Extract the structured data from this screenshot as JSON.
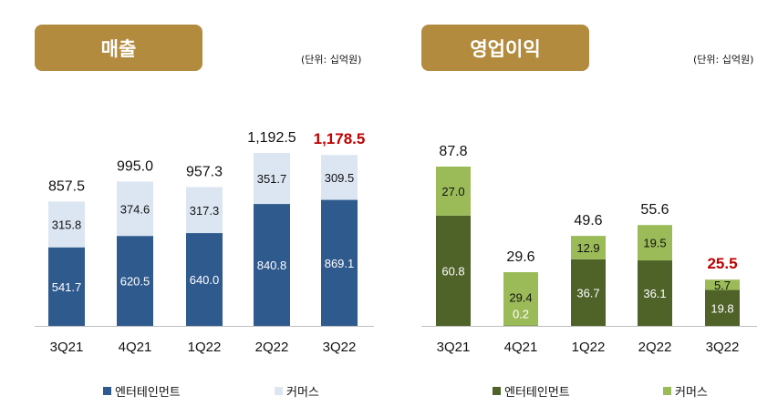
{
  "chart_data": [
    {
      "type": "bar",
      "stacked": true,
      "title": "매출",
      "unit": "(단위:  십억원)",
      "categories": [
        "3Q21",
        "4Q21",
        "1Q22",
        "2Q22",
        "3Q22"
      ],
      "series": [
        {
          "name": "엔터테인먼트",
          "values": [
            541.7,
            620.5,
            640.0,
            840.8,
            869.1
          ],
          "color": "#2f5a8e"
        },
        {
          "name": "커머스",
          "values": [
            315.8,
            374.6,
            317.3,
            351.7,
            309.5
          ],
          "color": "#dce6f2"
        }
      ],
      "totals": [
        "857.5",
        "995.0",
        "957.3",
        "1,192.5",
        "1,178.5"
      ],
      "highlight_color": "#c00000",
      "legend": "bottom"
    },
    {
      "type": "bar",
      "stacked": true,
      "title": "영업이익",
      "unit": "(단위:  십억원)",
      "categories": [
        "3Q21",
        "4Q21",
        "1Q22",
        "2Q22",
        "3Q22"
      ],
      "series": [
        {
          "name": "엔터테인먼트",
          "values": [
            60.8,
            0.2,
            36.7,
            36.1,
            19.8
          ],
          "color": "#4f6228"
        },
        {
          "name": "커머스",
          "values": [
            27.0,
            29.4,
            12.9,
            19.5,
            5.7
          ],
          "color": "#9bbb59"
        }
      ],
      "totals": [
        "87.8",
        "29.6",
        "49.6",
        "55.6",
        "25.5"
      ],
      "highlight_color": "#c00000",
      "legend": "bottom"
    }
  ]
}
